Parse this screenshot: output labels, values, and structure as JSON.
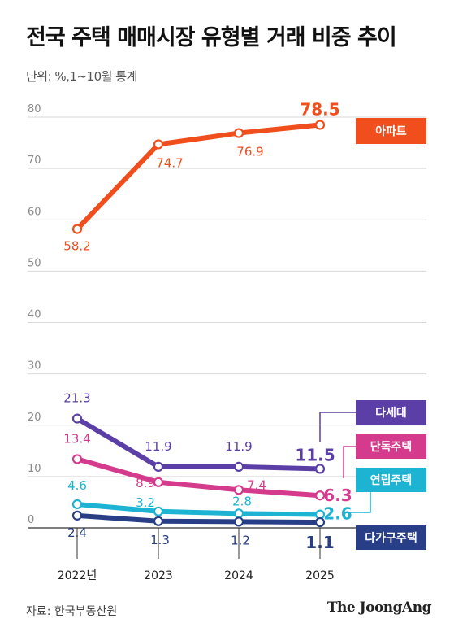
{
  "title": "전국 주택 매매시장 유형별 거래 비중 추이",
  "subtitle": "단위: %,1~10월 통계",
  "footer": {
    "source": "자료: 한국부동산원",
    "brand": "The JoongAng"
  },
  "chart_data": {
    "type": "line",
    "title": "전국 주택 매매시장 유형별 거래 비중 추이",
    "unit": "%",
    "categories": [
      "2022년",
      "2023",
      "2024",
      "2025"
    ],
    "ylim": [
      0,
      80
    ],
    "yticks": [
      0,
      10,
      20,
      30,
      40,
      50,
      60,
      70,
      80
    ],
    "grid": true,
    "series": [
      {
        "name": "아파트",
        "values": [
          58.2,
          74.7,
          76.9,
          78.5
        ],
        "labels": [
          "58.2",
          "74.7",
          "76.9",
          "78.5"
        ],
        "color": "#f04e1d"
      },
      {
        "name": "다세대",
        "values": [
          21.3,
          11.9,
          11.9,
          11.5
        ],
        "labels": [
          "21.3",
          "11.9",
          "11.9",
          "11.5"
        ],
        "color": "#5b3fa6"
      },
      {
        "name": "단독주택",
        "values": [
          13.4,
          8.9,
          7.4,
          6.3
        ],
        "labels": [
          "13.4",
          "8.9",
          "7.4",
          "6.3"
        ],
        "color": "#d43b8d"
      },
      {
        "name": "연립주택",
        "values": [
          4.6,
          3.2,
          2.8,
          2.6
        ],
        "labels": [
          "4.6",
          "3.2",
          "2.8",
          "2.6"
        ],
        "color": "#1cb4d2"
      },
      {
        "name": "다가구주택",
        "values": [
          2.4,
          1.3,
          1.2,
          1.1
        ],
        "labels": [
          "2.4",
          "1.3",
          "1.2",
          "1.1"
        ],
        "color": "#283f87"
      }
    ]
  }
}
